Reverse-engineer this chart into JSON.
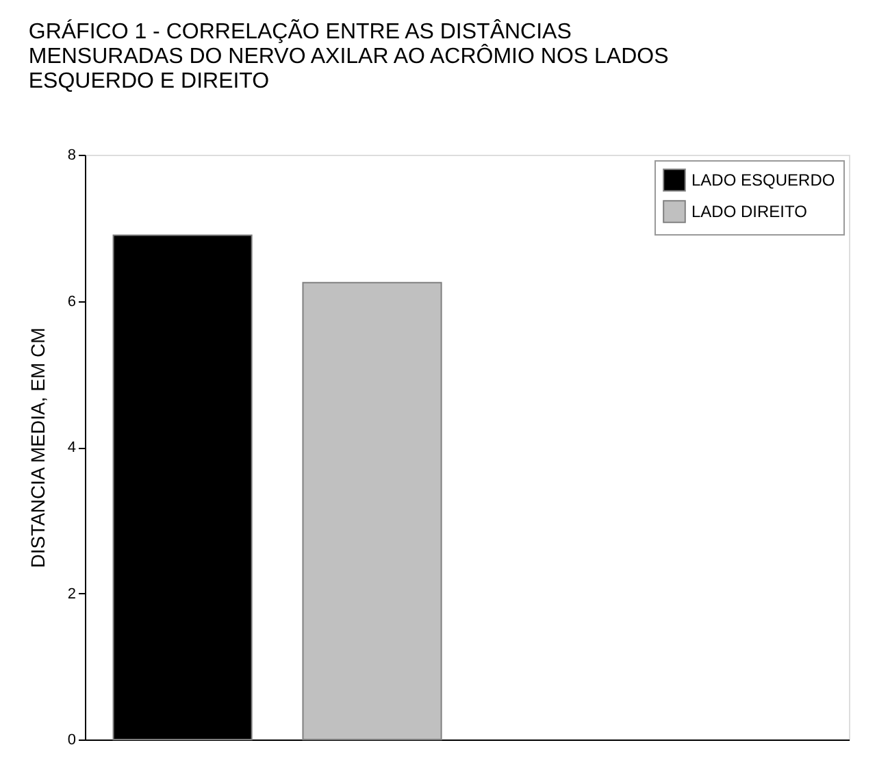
{
  "chart_data": {
    "type": "bar",
    "title": "GRÁFICO 1 - CORRELAÇÃO ENTRE  AS  DISTÂNCIAS MENSURADAS DO NERVO AXILAR AO ACRÔMIO NOS LADOS ESQUERDO E DIREITO",
    "ylabel": "DISTANCIA MEDIA, EM CM",
    "categories": [
      null
    ],
    "series": [
      {
        "name": "LADO ESQUERDO",
        "color": "#000000",
        "values": [
          6.9
        ]
      },
      {
        "name": "LADO DIREITO",
        "color": "#c0c0c0",
        "values": [
          6.25
        ]
      }
    ],
    "ylim": [
      0,
      8
    ],
    "yticks": [
      0,
      2,
      4,
      6,
      8
    ],
    "grid": false,
    "legend": "top right",
    "tick_labels": "y"
  }
}
